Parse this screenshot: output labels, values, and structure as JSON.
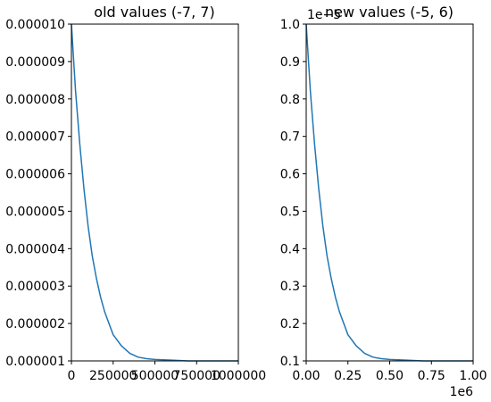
{
  "figure": {
    "background": "#ffffff"
  },
  "chart_data": [
    {
      "type": "line",
      "title": "old values (-7, 7)",
      "xlabel": "",
      "ylabel": "",
      "xlim": [
        0,
        1000000
      ],
      "ylim": [
        1e-06,
        1e-05
      ],
      "x_ticks": [
        0,
        250000,
        500000,
        750000,
        1000000
      ],
      "x_tick_labels": [
        "0",
        "250000",
        "500000",
        "750000",
        "1000000"
      ],
      "y_ticks": [
        1e-06,
        2e-06,
        3e-06,
        4e-06,
        5e-06,
        6e-06,
        7e-06,
        8e-06,
        9e-06,
        1e-05
      ],
      "y_tick_labels": [
        "0.000001",
        "0.000002",
        "0.000003",
        "0.000004",
        "0.000005",
        "0.000006",
        "0.000007",
        "0.000008",
        "0.000009",
        "0.000010"
      ],
      "x_offset_label": "",
      "y_offset_label": "",
      "grid": false,
      "series": [
        {
          "color": "#1f77b4",
          "x": [
            0,
            25000,
            50000,
            75000,
            100000,
            125000,
            150000,
            175000,
            200000,
            250000,
            300000,
            350000,
            400000,
            450000,
            500000,
            600000,
            700000,
            800000,
            900000,
            1000000
          ],
          "y": [
            1e-05,
            8.2e-06,
            6.8e-06,
            5.6e-06,
            4.6e-06,
            3.8e-06,
            3.2e-06,
            2.7e-06,
            2.3e-06,
            1.7e-06,
            1.4e-06,
            1.2e-06,
            1.1e-06,
            1.06e-06,
            1.04e-06,
            1.02e-06,
            1e-06,
            1e-06,
            1e-06,
            1e-06
          ]
        }
      ]
    },
    {
      "type": "line",
      "title": "new values (-5, 6)",
      "xlabel": "",
      "ylabel": "",
      "xlim": [
        0,
        1
      ],
      "ylim": [
        0.1,
        1.0
      ],
      "x_ticks": [
        0,
        0.25,
        0.5,
        0.75,
        1.0
      ],
      "x_tick_labels": [
        "0.00",
        "0.25",
        "0.50",
        "0.75",
        "1.00"
      ],
      "y_ticks": [
        0.1,
        0.2,
        0.3,
        0.4,
        0.5,
        0.6,
        0.7,
        0.8,
        0.9,
        1.0
      ],
      "y_tick_labels": [
        "0.1",
        "0.2",
        "0.3",
        "0.4",
        "0.5",
        "0.6",
        "0.7",
        "0.8",
        "0.9",
        "1.0"
      ],
      "x_offset_label": "1e6",
      "y_offset_label": "1e−5",
      "grid": false,
      "series": [
        {
          "color": "#1f77b4",
          "x": [
            0,
            0.025,
            0.05,
            0.075,
            0.1,
            0.125,
            0.15,
            0.175,
            0.2,
            0.25,
            0.3,
            0.35,
            0.4,
            0.45,
            0.5,
            0.6,
            0.7,
            0.8,
            0.9,
            1.0
          ],
          "y": [
            1.0,
            0.82,
            0.68,
            0.56,
            0.46,
            0.38,
            0.32,
            0.27,
            0.23,
            0.17,
            0.14,
            0.12,
            0.11,
            0.106,
            0.104,
            0.102,
            0.1,
            0.1,
            0.1,
            0.1
          ]
        }
      ]
    }
  ]
}
